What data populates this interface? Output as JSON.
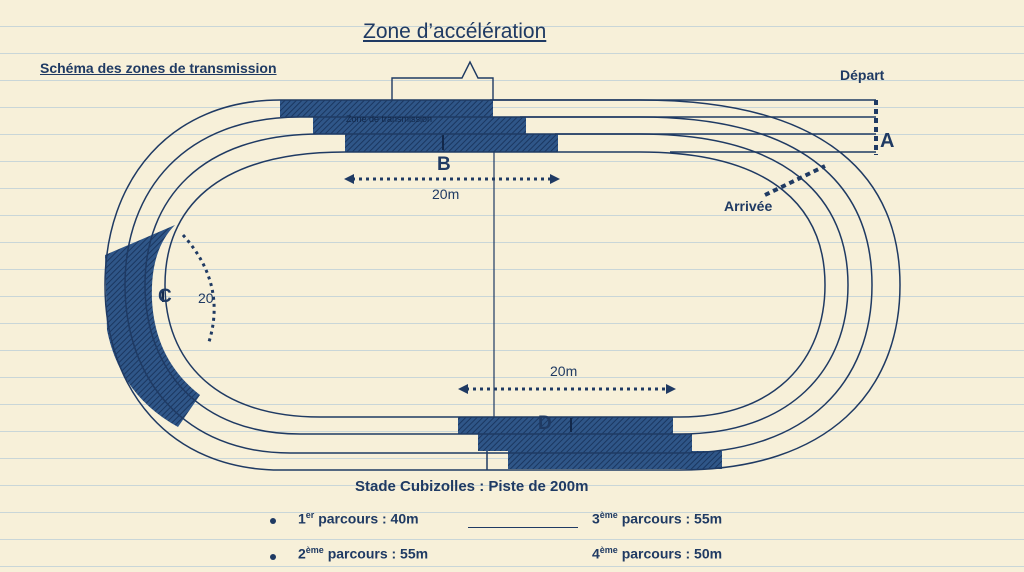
{
  "title": "Schéma des zones de transmission",
  "zone_acceleration_label": "Zone d’accélération",
  "zone_small_label": "Zone de transmission",
  "depart_label": "Départ",
  "arrivee_label": "Arrivée",
  "points": {
    "a": "A",
    "b": "B",
    "c": "C",
    "d": "D"
  },
  "distances": {
    "b": "20m",
    "c": "20",
    "d": "20m"
  },
  "stadium_label": "Stade Cubizolles : Piste de 200m",
  "courses": [
    {
      "num": "1",
      "sup": "er",
      "text": " parcours : 40m"
    },
    {
      "num": "2",
      "sup": "ème",
      "text": " parcours : 55m"
    },
    {
      "num": "3",
      "sup": "ème",
      "text": " parcours : 55m"
    },
    {
      "num": "4",
      "sup": "ème",
      "text": " parcours : 50m"
    }
  ],
  "colors": {
    "ink": "#1f3a63",
    "paper": "#f7f0d9",
    "rule": "#c9d6d8",
    "hatch": "#24497a"
  }
}
